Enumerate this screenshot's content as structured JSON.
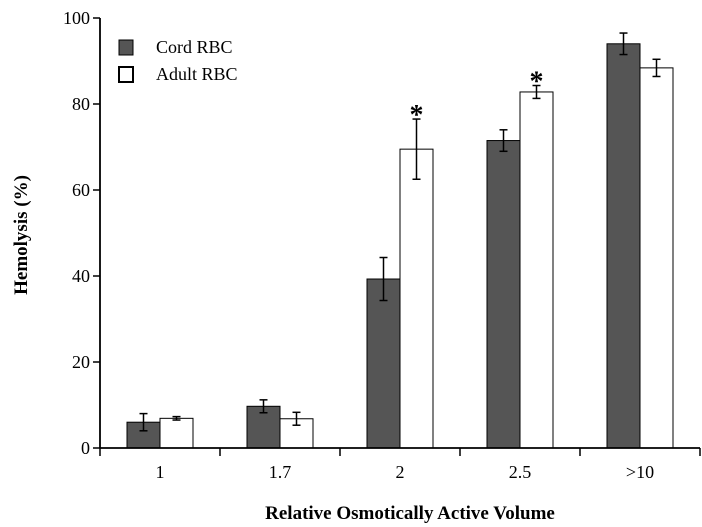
{
  "chart_data": {
    "type": "bar",
    "title": "",
    "xlabel": "Relative Osmotically Active Volume",
    "ylabel": "Hemolysis (%)",
    "categories": [
      "1",
      "1.7",
      "2",
      "2.5",
      ">10"
    ],
    "ylim": [
      0,
      100
    ],
    "yticks": [
      0,
      20,
      40,
      60,
      80,
      100
    ],
    "grid": false,
    "legend_position": "top-left",
    "series": [
      {
        "name": "Cord RBC",
        "color": "#555555",
        "values": [
          6,
          9.7,
          39.3,
          71.5,
          94
        ],
        "errors": [
          2,
          1.5,
          5,
          2.5,
          2.5
        ]
      },
      {
        "name": "Adult RBC",
        "color": "#ffffff",
        "values": [
          6.9,
          6.8,
          69.5,
          82.8,
          88.4
        ],
        "errors": [
          0.4,
          1.5,
          7,
          1.5,
          2
        ]
      }
    ],
    "annotations": [
      {
        "category": "2",
        "text": "*"
      },
      {
        "category": "2.5",
        "text": "*"
      }
    ]
  }
}
